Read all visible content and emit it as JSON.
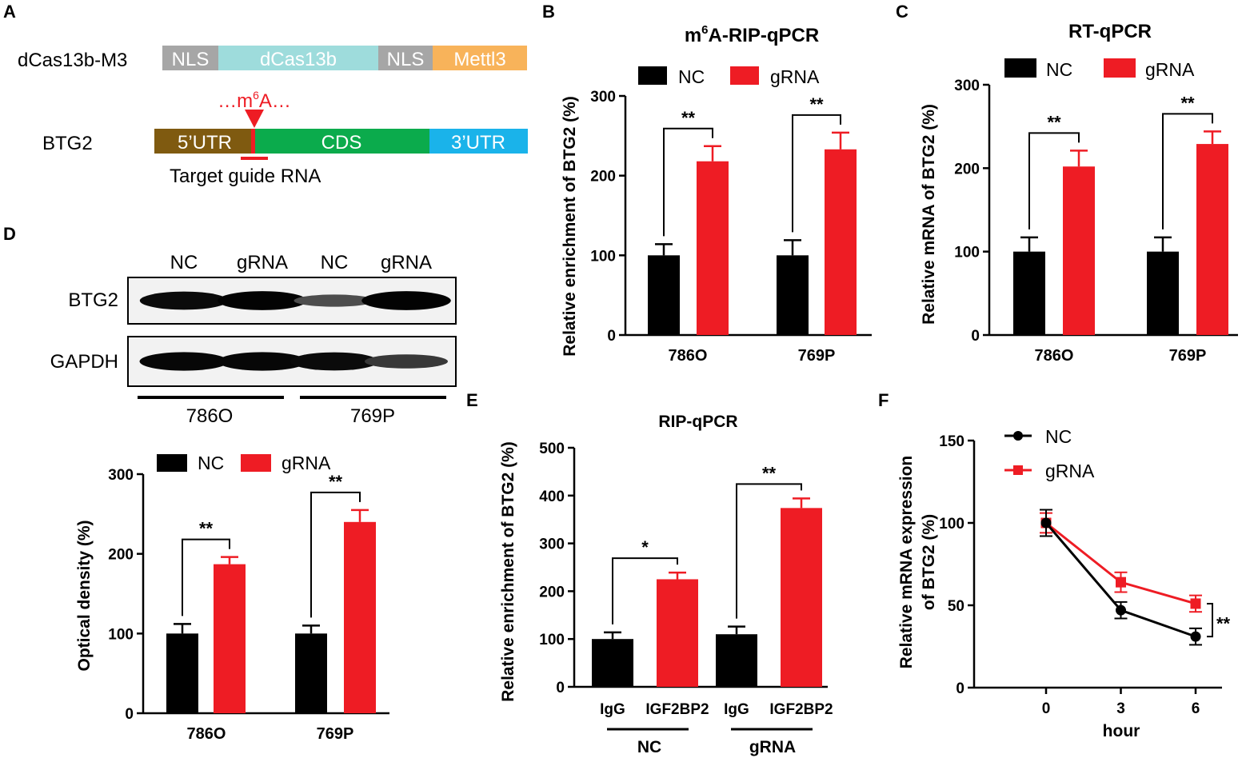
{
  "colors": {
    "nc": "#000000",
    "grna": "#ee1c24",
    "nls": "#a6a6a6",
    "dcas": "#9edcdc",
    "mettl3": "#f8b35a",
    "utr5": "#7f5a10",
    "cds": "#0bab4c",
    "utr3": "#1ab3ea"
  },
  "panel_letters": [
    "A",
    "B",
    "C",
    "D",
    "E",
    "F"
  ],
  "panelA": {
    "construct_label": "dCas13b-M3",
    "construct_segments": [
      "NLS",
      "dCas13b",
      "NLS",
      "Mettl3"
    ],
    "m6a_prefix": "…m",
    "m6a_sup": "6",
    "m6a_suffix": "A…",
    "gene_label": "BTG2",
    "gene_segments": [
      "5’UTR",
      "CDS",
      "3’UTR"
    ],
    "target_label": "Target guide RNA"
  },
  "panelD_blot": {
    "lane_labels": [
      "NC",
      "gRNA",
      "NC",
      "gRNA"
    ],
    "row_labels": [
      "BTG2",
      "GAPDH"
    ],
    "group_labels": [
      "786O",
      "769P"
    ],
    "btg2_band_intensity": [
      0.92,
      0.98,
      0.45,
      0.98
    ],
    "gapdh_band_intensity": [
      0.95,
      0.95,
      0.92,
      0.6
    ]
  },
  "chart_data": [
    {
      "id": "B",
      "type": "bar",
      "title_pre": "m",
      "title_sup": "6",
      "title_post": "A-RIP-qPCR",
      "ylabel": "Relative enrichment of BTG2 (%)",
      "categories": [
        "786O",
        "769P"
      ],
      "series": [
        {
          "name": "NC",
          "values": [
            100,
            100
          ],
          "errors": [
            14,
            19
          ]
        },
        {
          "name": "gRNA",
          "values": [
            218,
            233
          ],
          "errors": [
            19,
            21
          ]
        }
      ],
      "ylim": [
        0,
        300
      ],
      "yticks": [
        "0",
        "100",
        "200",
        "300"
      ],
      "significance": [
        "**",
        "**"
      ],
      "legend": "top"
    },
    {
      "id": "C",
      "type": "bar",
      "title": "RT-qPCR",
      "ylabel": "Relative mRNA of BTG2 (%)",
      "categories": [
        "786O",
        "769P"
      ],
      "series": [
        {
          "name": "NC",
          "values": [
            100,
            100
          ],
          "errors": [
            17,
            17
          ]
        },
        {
          "name": "gRNA",
          "values": [
            202,
            229
          ],
          "errors": [
            19,
            15
          ]
        }
      ],
      "ylim": [
        0,
        300
      ],
      "yticks": [
        "0",
        "100",
        "200",
        "300"
      ],
      "significance": [
        "**",
        "**"
      ],
      "legend": "top"
    },
    {
      "id": "D",
      "type": "bar",
      "ylabel": "Optical density (%)",
      "categories": [
        "786O",
        "769P"
      ],
      "series": [
        {
          "name": "NC",
          "values": [
            100,
            100
          ],
          "errors": [
            12,
            10
          ]
        },
        {
          "name": "gRNA",
          "values": [
            187,
            240
          ],
          "errors": [
            9,
            15
          ]
        }
      ],
      "ylim": [
        0,
        300
      ],
      "yticks": [
        "0",
        "100",
        "200",
        "300"
      ],
      "significance": [
        "**",
        "**"
      ],
      "legend": "top"
    },
    {
      "id": "E",
      "type": "bar",
      "title": "RIP-qPCR",
      "ylabel": "Relative enrichment of BTG2 (%)",
      "categories": [
        "IgG",
        "IGF2BP2",
        "IgG",
        "IGF2BP2"
      ],
      "groups": [
        "NC",
        "gRNA"
      ],
      "values": [
        100,
        225,
        110,
        374
      ],
      "errors": [
        14,
        14,
        16,
        20
      ],
      "ylim": [
        0,
        500
      ],
      "yticks": [
        "0",
        "100",
        "200",
        "300",
        "400",
        "500"
      ],
      "significance": [
        "*",
        "**"
      ]
    },
    {
      "id": "F",
      "type": "line",
      "ylabel_line1": "Relative mRNA  expression",
      "ylabel_line2": "of BTG2 (%)",
      "xlabel": "hour",
      "x": [
        0,
        3,
        6
      ],
      "xticks": [
        "0",
        "3",
        "6"
      ],
      "series": [
        {
          "name": "NC",
          "values": [
            100,
            47,
            31
          ],
          "errors": [
            8,
            5,
            5
          ],
          "marker": "circle"
        },
        {
          "name": "gRNA",
          "values": [
            100,
            64,
            51
          ],
          "errors": [
            6,
            6,
            5
          ],
          "marker": "square"
        }
      ],
      "ylim": [
        0,
        150
      ],
      "yticks": [
        "0",
        "50",
        "100",
        "150"
      ],
      "significance": "**",
      "legend": "top-left"
    }
  ]
}
